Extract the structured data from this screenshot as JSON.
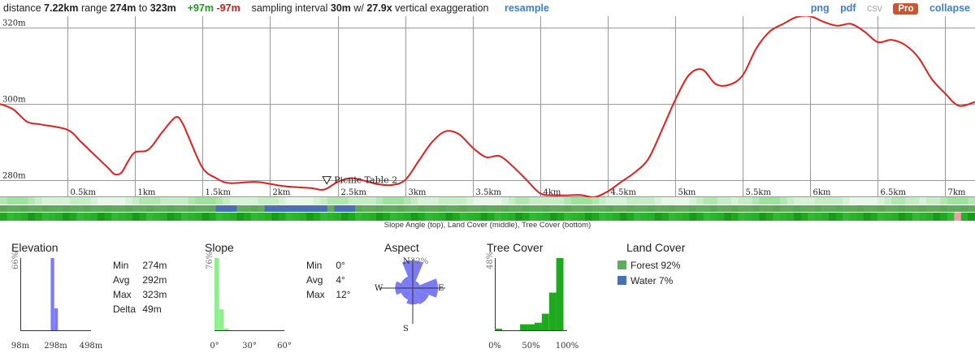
{
  "header": {
    "distance_label": "distance",
    "distance": "7.22km",
    "range_label": "range",
    "range_min": "274m",
    "range_to": "to",
    "range_max": "323m",
    "gain": "+97m",
    "loss": "-97m",
    "sampling_label": "sampling interval",
    "sampling": "30m",
    "exag_prefix": "w/",
    "exaggeration": "27.9x",
    "exag_suffix": "vertical exaggeration",
    "resample": "resample",
    "png": "png",
    "pdf": "pdf",
    "csv": "csv",
    "pro": "Pro",
    "collapse": "collapse"
  },
  "colors": {
    "profile_line": "#e02020",
    "grid": "#999999",
    "gain": "#1a9a1a",
    "loss": "#d81b1b",
    "link": "#3a7fd0",
    "pro_badge": "#c8572f",
    "elevation_hist": "#7b7bf5",
    "slope_hist": "#8fef8f",
    "aspect": "#7b7bf5",
    "forest": "#5fac5f",
    "water": "#4a6fb3",
    "tree_bars": "#1fa91f"
  },
  "strip_caption": "Slope Angle (top), Land Cover (middle), Tree Cover (bottom)",
  "chart_data": [
    {
      "type": "line",
      "title": "",
      "xlabel": "",
      "ylabel": "",
      "x_unit": "km",
      "y_unit": "m",
      "xlim": [
        0,
        7.22
      ],
      "ylim": [
        275.5,
        323
      ],
      "y_ticks": [
        280,
        300,
        320
      ],
      "y_tick_labels": [
        "280m",
        "300m",
        "320m"
      ],
      "x_ticks": [
        0.5,
        1,
        1.5,
        2,
        2.5,
        3,
        3.5,
        4,
        4.5,
        5,
        5.5,
        6,
        6.5,
        7
      ],
      "x_tick_labels": [
        "0.5km",
        "1km",
        "1.5km",
        "2km",
        "2.5km",
        "3km",
        "3.5km",
        "4km",
        "4.5km",
        "5km",
        "5.5km",
        "6km",
        "6.5km",
        "7km"
      ],
      "grid": true,
      "annotation": {
        "label": "Picnic Table 2",
        "x": 2.42,
        "y": 277.7
      },
      "series": [
        {
          "x": [
            0,
            0.1,
            0.2,
            0.3,
            0.5,
            0.6,
            0.7,
            0.8,
            0.85,
            0.9,
            0.95,
            1.0,
            1.1,
            1.2,
            1.3,
            1.35,
            1.4,
            1.5,
            1.6,
            1.7,
            1.9,
            2.1,
            2.3,
            2.4,
            2.5,
            2.6,
            2.7,
            2.8,
            2.9,
            3.0,
            3.1,
            3.2,
            3.3,
            3.4,
            3.5,
            3.6,
            3.7,
            3.8,
            3.9,
            4.0,
            4.1,
            4.2,
            4.3,
            4.4,
            4.5,
            4.6,
            4.7,
            4.8,
            4.9,
            5.0,
            5.1,
            5.2,
            5.3,
            5.4,
            5.5,
            5.6,
            5.7,
            5.8,
            5.9,
            6.0,
            6.1,
            6.2,
            6.3,
            6.4,
            6.5,
            6.6,
            6.7,
            6.8,
            6.9,
            7.0,
            7.1,
            7.22
          ],
          "y": [
            300,
            298.5,
            295.3,
            294.6,
            293.2,
            290,
            286.6,
            283.2,
            281.5,
            282,
            285,
            287.3,
            288,
            292.5,
            296.5,
            295,
            291,
            283.2,
            280.5,
            279.2,
            279.5,
            278.4,
            277.9,
            277.5,
            279.5,
            280.5,
            279.8,
            278.9,
            278.7,
            280,
            285,
            290,
            292.8,
            292,
            288.5,
            286,
            286.3,
            283.5,
            280,
            276.5,
            276,
            276,
            276.1,
            275.5,
            277,
            279.5,
            282,
            285.5,
            293,
            301,
            307.5,
            309,
            305.2,
            305,
            307.5,
            314.5,
            319,
            321,
            322.8,
            323,
            321.5,
            320.5,
            321,
            319,
            316.2,
            316.8,
            315.5,
            312.2,
            306.5,
            302.7,
            299.5,
            300.5
          ]
        }
      ]
    },
    {
      "type": "bar",
      "title": "Elevation",
      "x_tick_labels": [
        "98m",
        "298m",
        "498m"
      ],
      "ymax_label": "66%",
      "bins": [
        {
          "from": 270,
          "to": 290,
          "percent": 66
        },
        {
          "from": 290,
          "to": 310,
          "percent": 20
        }
      ],
      "xlim": [
        98,
        498
      ],
      "stats": [
        {
          "label": "Min",
          "value": "274m"
        },
        {
          "label": "Avg",
          "value": "292m"
        },
        {
          "label": "Max",
          "value": "323m"
        },
        {
          "label": "Delta",
          "value": "49m"
        }
      ]
    },
    {
      "type": "bar",
      "title": "Slope",
      "x_tick_labels": [
        "0°",
        "30°",
        "60°"
      ],
      "ymax_label": "76%",
      "bins": [
        {
          "from": 0,
          "to": 4,
          "percent": 76
        },
        {
          "from": 4,
          "to": 8,
          "percent": 22
        },
        {
          "from": 8,
          "to": 12,
          "percent": 2
        }
      ],
      "xlim": [
        0,
        60
      ],
      "stats": [
        {
          "label": "Min",
          "value": "0°"
        },
        {
          "label": "Avg",
          "value": "4°"
        },
        {
          "label": "Max",
          "value": "12°"
        }
      ]
    },
    {
      "type": "pie",
      "title": "Aspect",
      "max_label": "22%",
      "directions": [
        "N",
        "E",
        "S",
        "W"
      ],
      "sectors": [
        {
          "direction": "N",
          "percent": 22
        },
        {
          "direction": "NE",
          "percent": 6
        },
        {
          "direction": "E",
          "percent": 20
        },
        {
          "direction": "SE",
          "percent": 14
        },
        {
          "direction": "S",
          "percent": 13
        },
        {
          "direction": "SW",
          "percent": 10
        },
        {
          "direction": "W",
          "percent": 14
        },
        {
          "direction": "NW",
          "percent": 10
        }
      ]
    },
    {
      "type": "bar",
      "title": "Tree Cover",
      "x_tick_labels": [
        "0%",
        "50%",
        "100%"
      ],
      "ymax_label": "48%",
      "bins": [
        {
          "from": 0,
          "to": 10,
          "percent": 1
        },
        {
          "from": 35,
          "to": 45,
          "percent": 4
        },
        {
          "from": 45,
          "to": 55,
          "percent": 4
        },
        {
          "from": 55,
          "to": 65,
          "percent": 5
        },
        {
          "from": 65,
          "to": 75,
          "percent": 11
        },
        {
          "from": 75,
          "to": 85,
          "percent": 25
        },
        {
          "from": 85,
          "to": 95,
          "percent": 48
        }
      ],
      "xlim": [
        0,
        100
      ]
    }
  ],
  "land_cover": {
    "title": "Land Cover",
    "items": [
      {
        "name": "Forest",
        "value": "92%",
        "color": "#5fac5f"
      },
      {
        "name": "Water",
        "value": "7%",
        "color": "#4a6fb3"
      }
    ]
  }
}
